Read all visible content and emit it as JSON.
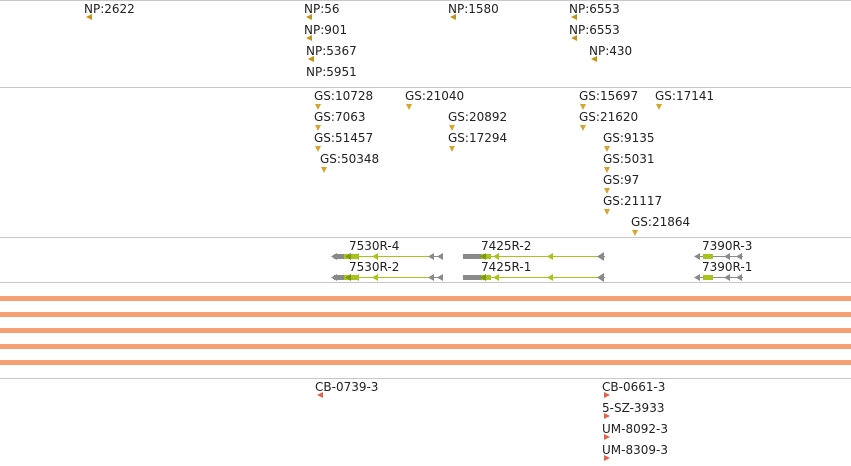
{
  "colors": {
    "separator": "#c8c8c8",
    "np_marker": "#c69214",
    "gs_marker": "#d9a42a",
    "cb_marker": "#e8604a",
    "transcript_gray": "#8a8a8a",
    "transcript_green": "#a8c41c",
    "band_orange": "#f4a070"
  },
  "np_track": {
    "features": [
      {
        "label": "NP:2622",
        "marker": "arrow-left"
      },
      {
        "label": "NP:56",
        "marker": "arrow-left"
      },
      {
        "label": "NP:901",
        "marker": "arrow-left"
      },
      {
        "label": "NP:5367",
        "marker": "arrow-left"
      },
      {
        "label": "NP:5951",
        "marker": "arrow-left"
      },
      {
        "label": "NP:1580",
        "marker": "arrow-left"
      },
      {
        "label": "NP:6553",
        "marker": "arrow-left"
      },
      {
        "label": "NP:6553",
        "marker": "arrow-left"
      },
      {
        "label": "NP:430",
        "marker": "arrow-left"
      }
    ]
  },
  "gs_track": {
    "features": [
      {
        "label": "GS:10728",
        "marker": "arrow-down"
      },
      {
        "label": "GS:7063",
        "marker": "arrow-down"
      },
      {
        "label": "GS:51457",
        "marker": "arrow-down"
      },
      {
        "label": "GS:50348",
        "marker": "arrow-down"
      },
      {
        "label": "GS:21040",
        "marker": "arrow-down"
      },
      {
        "label": "GS:20892",
        "marker": "arrow-down"
      },
      {
        "label": "GS:17294",
        "marker": "arrow-down"
      },
      {
        "label": "GS:15697",
        "marker": "arrow-down"
      },
      {
        "label": "GS:21620",
        "marker": "arrow-down"
      },
      {
        "label": "GS:9135",
        "marker": "arrow-down"
      },
      {
        "label": "GS:5031",
        "marker": "arrow-down"
      },
      {
        "label": "GS:97",
        "marker": "arrow-down"
      },
      {
        "label": "GS:21117",
        "marker": "arrow-down"
      },
      {
        "label": "GS:21864",
        "marker": "arrow-down"
      },
      {
        "label": "GS:17141",
        "marker": "arrow-down"
      }
    ]
  },
  "transcript_track": {
    "transcripts": [
      {
        "label": "7530R-4",
        "strand": "reverse"
      },
      {
        "label": "7530R-2",
        "strand": "reverse"
      },
      {
        "label": "7425R-2",
        "strand": "reverse"
      },
      {
        "label": "7425R-1",
        "strand": "reverse"
      },
      {
        "label": "7390R-3",
        "strand": "reverse"
      },
      {
        "label": "7390R-1",
        "strand": "reverse"
      }
    ]
  },
  "band_track": {
    "band_count": 5
  },
  "cb_track": {
    "features": [
      {
        "label": "CB-0739-3",
        "marker": "arrow-left"
      },
      {
        "label": "CB-0661-3",
        "marker": "arrow-right"
      },
      {
        "label": "5-SZ-3933",
        "marker": "arrow-right"
      },
      {
        "label": "UM-8092-3",
        "marker": "arrow-right"
      },
      {
        "label": "UM-8309-3",
        "marker": "arrow-right"
      }
    ]
  }
}
